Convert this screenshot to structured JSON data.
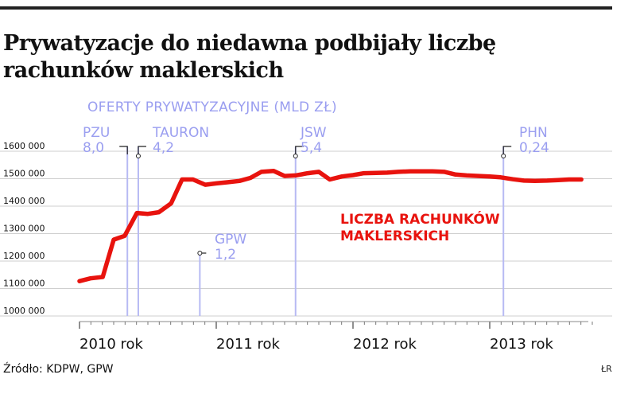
{
  "title": "Prywatyzacje do niedawna podbijały liczbę rachunków maklerskich",
  "source": "Źródło: KDPW, GPW",
  "credit": "ŁR",
  "chart_data": {
    "type": "line",
    "title": "Prywatyzacje do niedawna podbijały liczbę rachunków maklerskich",
    "offers_label": "OFERTY PRYWATYZACYJNE (MLD ZŁ)",
    "series_label": [
      "LICZBA RACHUNKÓW",
      "MAKLERSKICH"
    ],
    "ylim": [
      1000000,
      1600000
    ],
    "y_ticks": [
      {
        "v": 1000000,
        "label": "1000 000"
      },
      {
        "v": 1100000,
        "label": "1100 000"
      },
      {
        "v": 1200000,
        "label": "1200 000"
      },
      {
        "v": 1300000,
        "label": "1300 000"
      },
      {
        "v": 1400000,
        "label": "1400 000"
      },
      {
        "v": 1500000,
        "label": "1500 000"
      },
      {
        "v": 1600000,
        "label": "1600 000"
      }
    ],
    "xlim": [
      2010.0,
      2013.75
    ],
    "x_ticks": [
      {
        "v": 2010.0,
        "label": "2010 rok"
      },
      {
        "v": 2011.0,
        "label": "2011 rok"
      },
      {
        "v": 2012.0,
        "label": "2012 rok"
      },
      {
        "v": 2013.0,
        "label": "2013 rok"
      }
    ],
    "series": [
      {
        "color": "#e8130e",
        "points": [
          [
            2010.0,
            1127000
          ],
          [
            2010.08,
            1137000
          ],
          [
            2010.17,
            1142000
          ],
          [
            2010.25,
            1278000
          ],
          [
            2010.33,
            1292000
          ],
          [
            2010.42,
            1375000
          ],
          [
            2010.5,
            1372000
          ],
          [
            2010.58,
            1378000
          ],
          [
            2010.67,
            1410000
          ],
          [
            2010.75,
            1497000
          ],
          [
            2010.83,
            1497000
          ],
          [
            2010.92,
            1478000
          ],
          [
            2011.0,
            1483000
          ],
          [
            2011.08,
            1487000
          ],
          [
            2011.17,
            1492000
          ],
          [
            2011.25,
            1503000
          ],
          [
            2011.33,
            1525000
          ],
          [
            2011.42,
            1528000
          ],
          [
            2011.5,
            1510000
          ],
          [
            2011.58,
            1512000
          ],
          [
            2011.67,
            1520000
          ],
          [
            2011.75,
            1525000
          ],
          [
            2011.83,
            1497000
          ],
          [
            2011.92,
            1508000
          ],
          [
            2012.0,
            1513000
          ],
          [
            2012.08,
            1520000
          ],
          [
            2012.17,
            1521000
          ],
          [
            2012.25,
            1522000
          ],
          [
            2012.33,
            1525000
          ],
          [
            2012.42,
            1527000
          ],
          [
            2012.5,
            1527000
          ],
          [
            2012.58,
            1527000
          ],
          [
            2012.67,
            1525000
          ],
          [
            2012.75,
            1515000
          ],
          [
            2012.83,
            1512000
          ],
          [
            2012.92,
            1510000
          ],
          [
            2013.0,
            1508000
          ],
          [
            2013.08,
            1505000
          ],
          [
            2013.17,
            1498000
          ],
          [
            2013.25,
            1493000
          ],
          [
            2013.33,
            1492000
          ],
          [
            2013.42,
            1493000
          ],
          [
            2013.5,
            1495000
          ],
          [
            2013.58,
            1497000
          ],
          [
            2013.67,
            1497000
          ]
        ]
      }
    ],
    "offers": [
      {
        "name": "PZU",
        "value": "8,0",
        "x": 2010.35
      },
      {
        "name": "TAURON",
        "value": "4,2",
        "x": 2010.43
      },
      {
        "name": "GPW",
        "value": "1,2",
        "x": 2010.88
      },
      {
        "name": "JSW",
        "value": "5,4",
        "x": 2011.58
      },
      {
        "name": "PHN",
        "value": "0,24",
        "x": 2013.1
      }
    ]
  }
}
